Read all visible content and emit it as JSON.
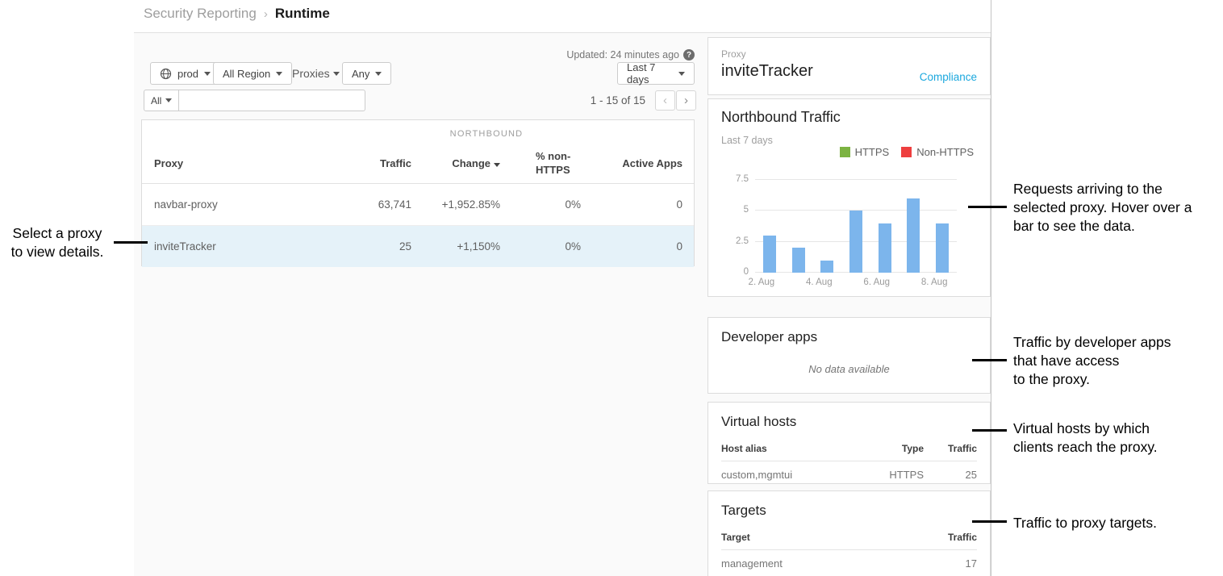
{
  "breadcrumb": {
    "parent": "Security Reporting",
    "separator": "›",
    "current": "Runtime"
  },
  "toolbar": {
    "env_button": "prod",
    "region_button": "All Region",
    "proxies_label": "Proxies",
    "any_button": "Any",
    "updated_text": "Updated: 24 minutes ago",
    "help_icon": "?",
    "range_button": "Last 7 days",
    "all_button": "All",
    "search_value": "",
    "pagination_range": "1 - 15 of 15",
    "prev_icon": "‹",
    "next_icon": "›"
  },
  "table": {
    "group_header": "NORTHBOUND",
    "col_proxy": "Proxy",
    "col_traffic": "Traffic",
    "col_change": "Change",
    "col_non_https": "% non-HTTPS",
    "col_active_apps": "Active Apps",
    "rows": [
      {
        "proxy": "navbar-proxy",
        "traffic": "63,741",
        "change": "+1,952.85%",
        "non_https": "0%",
        "active_apps": "0"
      },
      {
        "proxy": "inviteTracker",
        "traffic": "25",
        "change": "+1,150%",
        "non_https": "0%",
        "active_apps": "0"
      }
    ]
  },
  "detail": {
    "proxy_label": "Proxy",
    "proxy_name": "inviteTracker",
    "compliance_link": "Compliance",
    "developer_apps": {
      "title": "Developer apps",
      "empty_text": "No data available"
    },
    "virtual_hosts": {
      "title": "Virtual hosts",
      "col_host_alias": "Host alias",
      "col_type": "Type",
      "col_traffic": "Traffic",
      "rows": [
        {
          "host_alias": "custom,mgmtui",
          "type": "HTTPS",
          "traffic": "25"
        }
      ]
    },
    "targets": {
      "title": "Targets",
      "col_target": "Target",
      "col_traffic": "Traffic",
      "rows": [
        {
          "target": "management",
          "traffic": "17"
        }
      ]
    }
  },
  "chart_data": {
    "type": "bar",
    "title": "Northbound Traffic",
    "subtitle": "Last 7 days",
    "x": [
      "2. Aug",
      "3. Aug",
      "4. Aug",
      "5. Aug",
      "6. Aug",
      "7. Aug",
      "8. Aug"
    ],
    "values": [
      3,
      2,
      1,
      5,
      4,
      6,
      4
    ],
    "shown_xticks": [
      "2. Aug",
      "4. Aug",
      "6. Aug",
      "8. Aug"
    ],
    "yticks": [
      0,
      2.5,
      5,
      7.5
    ],
    "ylim": [
      0,
      7.5
    ],
    "grid": true,
    "bar_color": "#7cb5ec",
    "legend_position": "top-right",
    "legend_items": [
      {
        "label": "HTTPS",
        "color": "#7cb342"
      },
      {
        "label": "Non-HTTPS",
        "color": "#ee3f3f"
      }
    ]
  },
  "annotations": {
    "select_proxy": "Select a proxy\nto view details.",
    "northbound_chart": "Requests arriving to the\nselected proxy. Hover over a\nbar to see the data.",
    "developer_apps": "Traffic by developer apps\nthat have access\nto the proxy.",
    "virtual_hosts": "Virtual hosts by which\nclients reach the proxy.",
    "targets": "Traffic to proxy targets."
  },
  "colors": {
    "accent_link": "#1ba8de",
    "selected_row_bg": "#e5f2f9",
    "bar_blue": "#7cb5ec"
  }
}
